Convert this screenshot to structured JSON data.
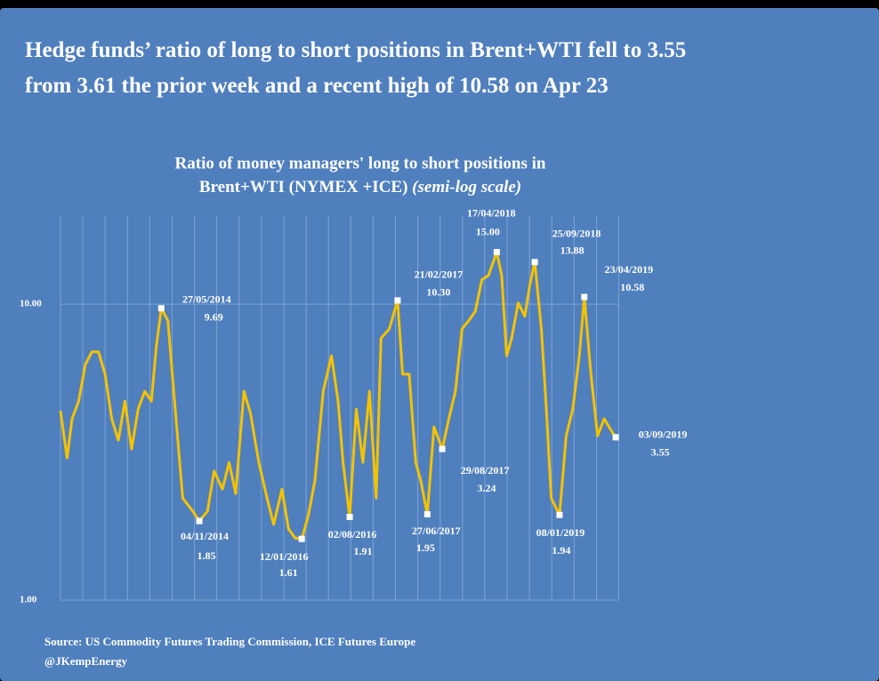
{
  "headline": [
    "Hedge funds’ ratio of long to short positions in Brent+WTI fell to 3.55",
    "from 3.61 the prior week and a recent high of 10.58 on Apr 23"
  ],
  "chart_data": {
    "type": "line",
    "title": [
      "Ratio of money managers' long to short positions in",
      "Brent+WTI (NYMEX +ICE)"
    ],
    "subtitle": "(semi-log scale)",
    "log_scale": true,
    "grid": true,
    "ylim": [
      1,
      20
    ],
    "yticks": [
      {
        "value": 1,
        "label": "1.00"
      },
      {
        "value": 10,
        "label": "10.00"
      }
    ],
    "xlim": [
      "2013-03-26",
      "2019-09-14"
    ],
    "x": [
      "2013-03-26",
      "2013-04-23",
      "2013-05-14",
      "2013-06-11",
      "2013-07-09",
      "2013-08-06",
      "2013-09-03",
      "2013-10-01",
      "2013-10-29",
      "2013-11-26",
      "2013-12-24",
      "2014-01-21",
      "2014-02-18",
      "2014-03-18",
      "2014-04-15",
      "2014-05-06",
      "2014-05-27",
      "2014-06-24",
      "2014-07-22",
      "2014-08-26",
      "2014-10-07",
      "2014-11-04",
      "2014-12-09",
      "2015-01-06",
      "2015-02-10",
      "2015-03-10",
      "2015-04-07",
      "2015-05-12",
      "2015-06-09",
      "2015-07-14",
      "2015-08-18",
      "2015-09-15",
      "2015-10-20",
      "2015-11-17",
      "2015-12-15",
      "2016-01-12",
      "2016-02-09",
      "2016-03-08",
      "2016-04-12",
      "2016-05-17",
      "2016-06-14",
      "2016-07-05",
      "2016-08-02",
      "2016-08-30",
      "2016-09-27",
      "2016-10-25",
      "2016-11-22",
      "2016-12-13",
      "2017-01-17",
      "2017-02-21",
      "2017-03-14",
      "2017-04-11",
      "2017-05-09",
      "2017-05-30",
      "2017-06-27",
      "2017-07-25",
      "2017-08-29",
      "2017-09-26",
      "2017-10-24",
      "2017-11-21",
      "2017-12-19",
      "2018-01-16",
      "2018-02-13",
      "2018-03-13",
      "2018-04-17",
      "2018-05-08",
      "2018-05-29",
      "2018-06-19",
      "2018-07-17",
      "2018-08-14",
      "2018-09-04",
      "2018-09-25",
      "2018-10-23",
      "2018-11-13",
      "2018-12-04",
      "2019-01-08",
      "2019-02-05",
      "2019-03-05",
      "2019-04-02",
      "2019-04-23",
      "2019-05-21",
      "2019-06-18",
      "2019-07-16",
      "2019-08-27",
      "2019-09-03"
    ],
    "series": [
      {
        "color": "#f5c200",
        "values": [
          4.36,
          3.02,
          4.1,
          4.7,
          6.25,
          6.9,
          6.9,
          5.8,
          4.1,
          3.47,
          4.7,
          3.24,
          4.42,
          5.08,
          4.7,
          7.2,
          9.69,
          8.8,
          4.7,
          2.21,
          2.0,
          1.85,
          2.0,
          2.73,
          2.37,
          2.92,
          2.29,
          5.08,
          4.27,
          2.92,
          2.21,
          1.8,
          2.37,
          1.74,
          1.62,
          1.61,
          1.93,
          2.54,
          5.08,
          6.7,
          4.7,
          2.92,
          1.91,
          4.42,
          2.92,
          5.08,
          2.21,
          7.67,
          8.25,
          10.3,
          5.8,
          5.8,
          2.92,
          2.54,
          1.95,
          3.85,
          3.24,
          4.1,
          5.08,
          8.25,
          8.8,
          9.45,
          12.1,
          12.5,
          15.0,
          12.5,
          6.7,
          7.67,
          10.1,
          9.1,
          11.6,
          13.88,
          8.25,
          4.42,
          2.21,
          1.94,
          3.59,
          4.42,
          6.7,
          10.58,
          5.8,
          3.59,
          4.1,
          3.61,
          3.55
        ]
      }
    ],
    "annotations": [
      {
        "x": "2014-05-27",
        "label": "27/05/2014",
        "value": 9.69,
        "value_label": "9.69"
      },
      {
        "x": "2014-11-04",
        "label": "04/11/2014",
        "value": 1.85,
        "value_label": "1.85"
      },
      {
        "x": "2016-01-12",
        "label": "12/01/2016",
        "value": 1.61,
        "value_label": "1.61"
      },
      {
        "x": "2016-08-02",
        "label": "02/08/2016",
        "value": 1.91,
        "value_label": "1.91"
      },
      {
        "x": "2017-02-21",
        "label": "21/02/2017",
        "value": 10.3,
        "value_label": "10.30"
      },
      {
        "x": "2017-06-27",
        "label": "27/06/2017",
        "value": 1.95,
        "value_label": "1.95"
      },
      {
        "x": "2017-08-29",
        "label": "29/08/2017",
        "value": 3.24,
        "value_label": "3.24"
      },
      {
        "x": "2018-04-17",
        "label": "17/04/2018",
        "value": 15.0,
        "value_label": "15.00"
      },
      {
        "x": "2018-09-25",
        "label": "25/09/2018",
        "value": 13.88,
        "value_label": "13.88"
      },
      {
        "x": "2019-01-08",
        "label": "08/01/2019",
        "value": 1.94,
        "value_label": "1.94"
      },
      {
        "x": "2019-04-23",
        "label": "23/04/2019",
        "value": 10.58,
        "value_label": "10.58"
      },
      {
        "x": "2019-09-03",
        "label": "03/09/2019",
        "value": 3.55,
        "value_label": "3.55"
      }
    ]
  },
  "source": [
    "Source: US Commodity Futures Trading Commission, ICE Futures Europe",
    "@JKempEnergy"
  ]
}
